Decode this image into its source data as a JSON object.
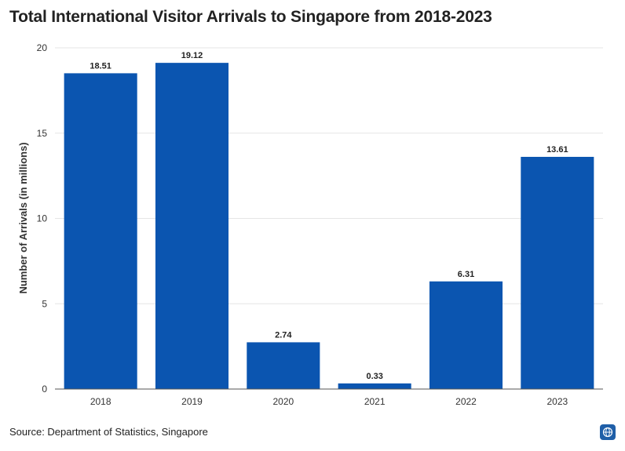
{
  "chart_data": {
    "type": "bar",
    "title": "Total International Visitor Arrivals to Singapore from 2018-2023",
    "xlabel": "",
    "ylabel": "Number of Arrivals (in millions)",
    "categories": [
      "2018",
      "2019",
      "2020",
      "2021",
      "2022",
      "2023"
    ],
    "values": [
      18.51,
      19.12,
      2.74,
      0.33,
      6.31,
      13.61
    ],
    "value_labels": [
      "18.51",
      "19.12",
      "2.74",
      "0.33",
      "6.31",
      "13.61"
    ],
    "ylim": [
      0,
      20
    ],
    "yticks": [
      0,
      5,
      10,
      15,
      20
    ],
    "grid": true,
    "bar_color": "#0b55b0"
  },
  "source": "Source: Department of Statistics, Singapore",
  "badge_icon": "globe-icon"
}
